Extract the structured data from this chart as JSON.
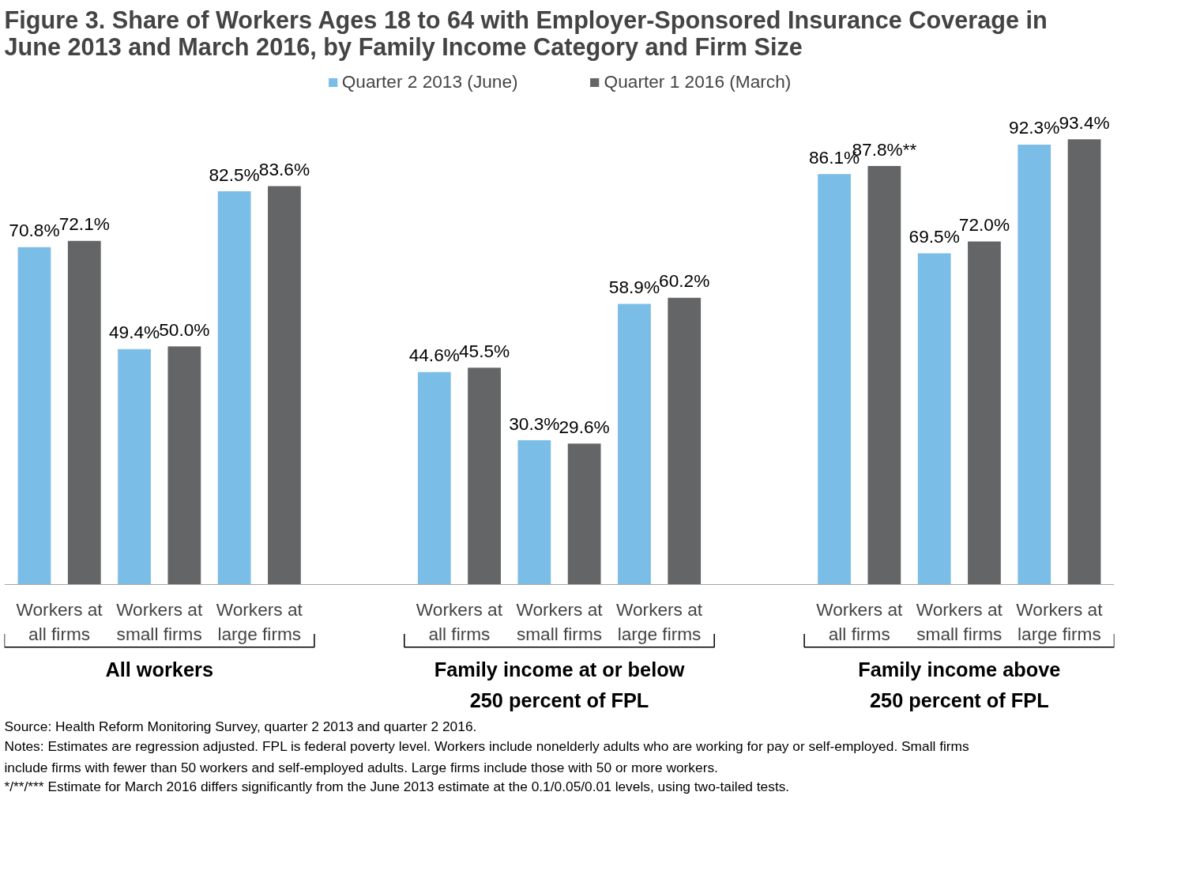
{
  "chart_data": {
    "type": "bar",
    "title": "Figure 3. Share of Workers Ages 18 to 64 with Employer-Sponsored Insurance Coverage in\nJune 2013 and March 2016, by Family Income Category and Firm Size",
    "categories": [
      "Workers at\nall firms",
      "Workers at\nsmall firms",
      "Workers at\nlarge firms",
      null,
      "Workers at\nall firms",
      "Workers at\nsmall firms",
      "Workers at\nlarge firms",
      null,
      "Workers at\nall firms",
      "Workers at\nsmall firms",
      "Workers at\nlarge firms"
    ],
    "series": [
      {
        "name": "Quarter 2 2013 (June)",
        "color": "#7abde6",
        "values": [
          70.8,
          49.4,
          82.5,
          null,
          44.6,
          30.3,
          58.9,
          null,
          86.1,
          69.5,
          92.3
        ],
        "value_labels": [
          "70.8%",
          "49.4%",
          "82.5%",
          null,
          "44.6%",
          "30.3%",
          "58.9%",
          null,
          "86.1%",
          "69.5%",
          "92.3%"
        ]
      },
      {
        "name": "Quarter 1 2016 (March)",
        "color": "#646567",
        "values": [
          72.1,
          50.0,
          83.6,
          null,
          45.5,
          29.6,
          60.2,
          null,
          87.8,
          72.0,
          93.4
        ],
        "value_labels": [
          "72.1%",
          "50.0%",
          "83.6%",
          null,
          "45.5%",
          "29.6%",
          "60.2%",
          null,
          "87.8%**",
          "72.0%",
          "93.4%"
        ]
      }
    ],
    "annotations": [
      "All workers",
      "Family income at or below\n250 percent of FPL",
      "Family income above\n250 percent of FPL",
      "Source: Health Reform Monitoring Survey, quarter 2 2013 and quarter 2 2016.",
      "Notes: Estimates are regression adjusted. FPL is federal poverty level. Workers include nonelderly adults who are working for pay or self-employed. Small firms\ninclude firms with fewer than 50 workers and self-employed adults. Large firms include those with 50 or more workers.",
      "*/**/*** Estimate for March 2016 differs significantly from the June 2013 estimate at the 0.1/0.05/0.01 levels, using two-tailed tests."
    ],
    "legend": "top",
    "grid": false
  }
}
